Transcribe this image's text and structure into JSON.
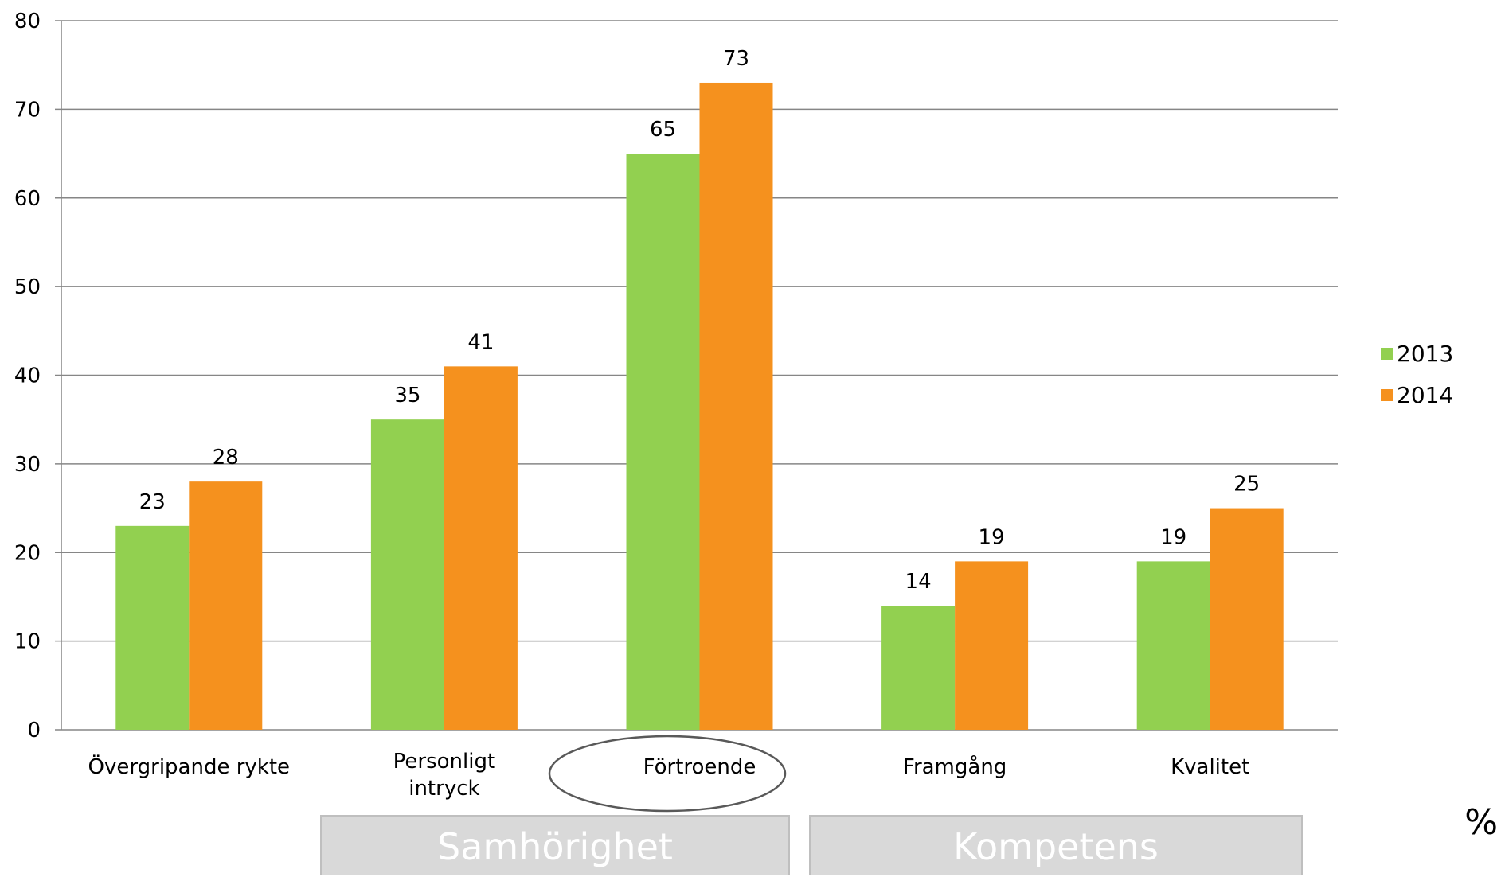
{
  "chart_data": {
    "type": "bar",
    "categories": [
      "Övergripande rykte",
      "Personligt intryck",
      "Förtroende",
      "Framgång",
      "Kvalitet"
    ],
    "series": [
      {
        "name": "2013",
        "values": [
          23,
          35,
          65,
          14,
          19
        ],
        "color": "#92d050"
      },
      {
        "name": "2014",
        "values": [
          28,
          41,
          73,
          19,
          25
        ],
        "color": "#f5911e"
      }
    ],
    "ylim": [
      0,
      80
    ],
    "yticks": [
      0,
      10,
      20,
      30,
      40,
      50,
      60,
      70,
      80
    ],
    "grid": true,
    "legend": "right",
    "highlighted_category": "Förtroende",
    "groups": [
      {
        "label": "Samhörighet"
      },
      {
        "label": "Kompetens"
      }
    ],
    "unit": "%"
  }
}
